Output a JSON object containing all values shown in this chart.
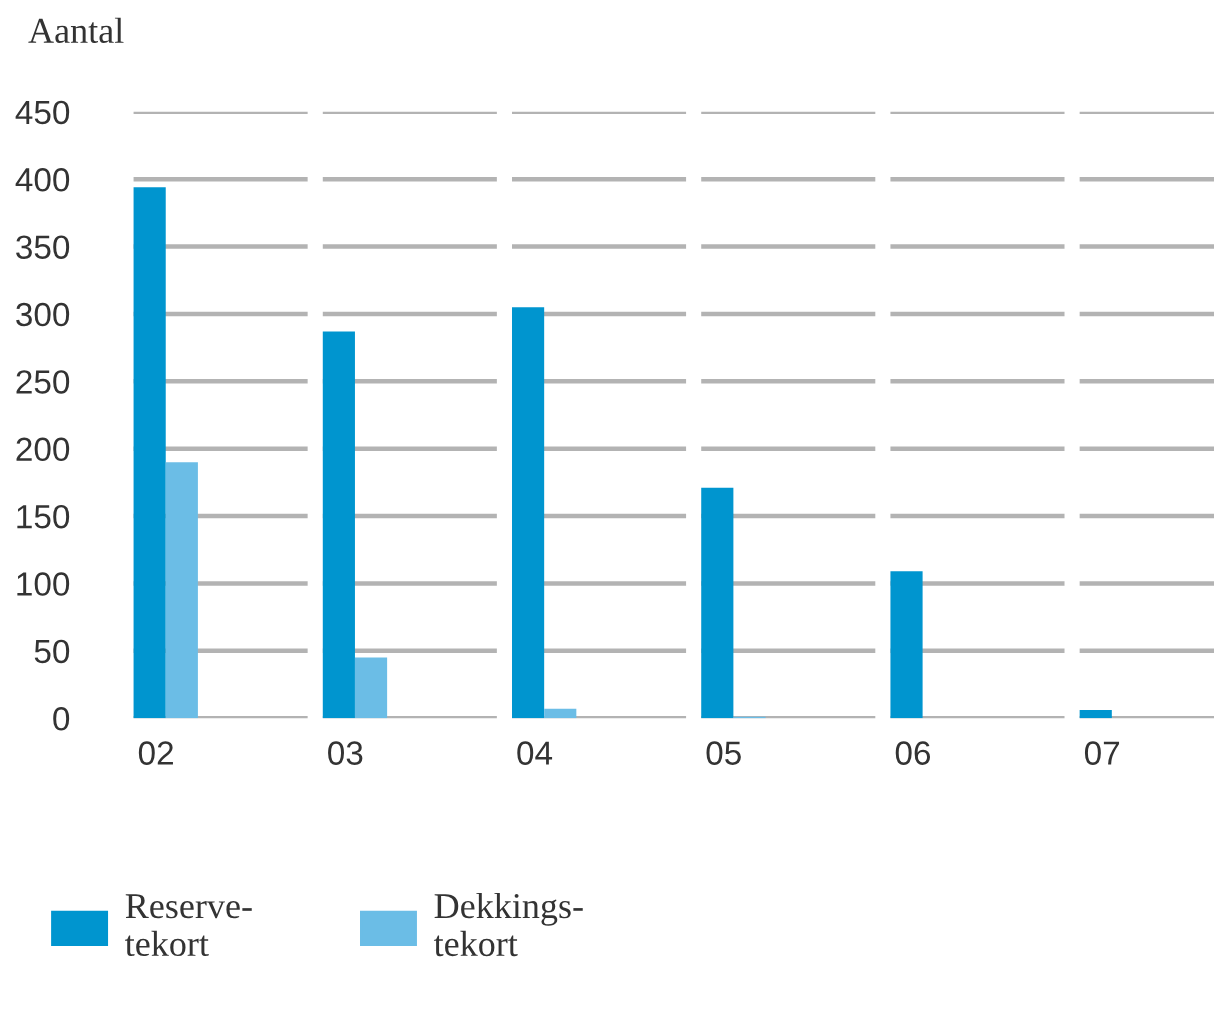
{
  "chart_data": {
    "type": "bar",
    "ylabel": "Aantal",
    "categories": [
      "02",
      "03",
      "04",
      "05",
      "06",
      "07"
    ],
    "series": [
      {
        "name": "Reserve-\ntekort",
        "color": "#0095cf",
        "values": [
          394,
          287,
          305,
          171,
          109,
          6
        ]
      },
      {
        "name": "Dekkings-\ntekort",
        "color": "#6bbde6",
        "values": [
          190,
          45,
          7,
          1,
          0,
          0
        ]
      }
    ],
    "ylim": [
      0,
      450
    ],
    "yticks": [
      0,
      50,
      100,
      150,
      200,
      250,
      300,
      350,
      400,
      450
    ],
    "grid": "y",
    "legend": "bottom"
  }
}
